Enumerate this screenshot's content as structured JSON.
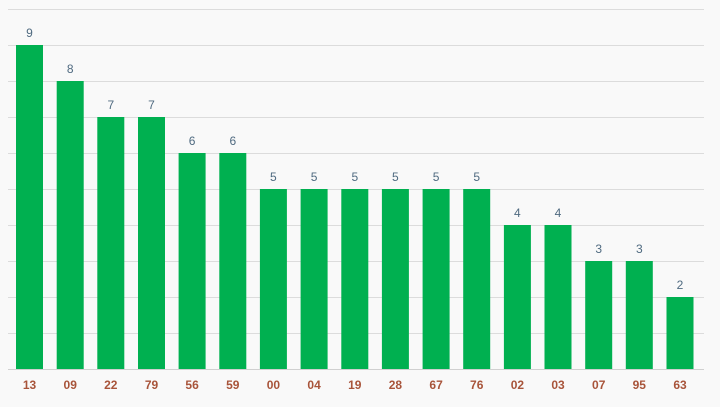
{
  "chart_data": {
    "type": "bar",
    "categories": [
      "13",
      "09",
      "22",
      "79",
      "56",
      "59",
      "00",
      "04",
      "19",
      "28",
      "67",
      "76",
      "02",
      "03",
      "07",
      "95",
      "63"
    ],
    "values": [
      9,
      8,
      7,
      7,
      6,
      6,
      5,
      5,
      5,
      5,
      5,
      5,
      4,
      4,
      3,
      3,
      2
    ],
    "title": "",
    "xlabel": "",
    "ylabel": "",
    "ylim": [
      0,
      10
    ],
    "grid": true,
    "legend": "none",
    "bar_color": "#00b050",
    "value_label_color": "#4f6a80",
    "category_label_color": "#a8543a"
  }
}
